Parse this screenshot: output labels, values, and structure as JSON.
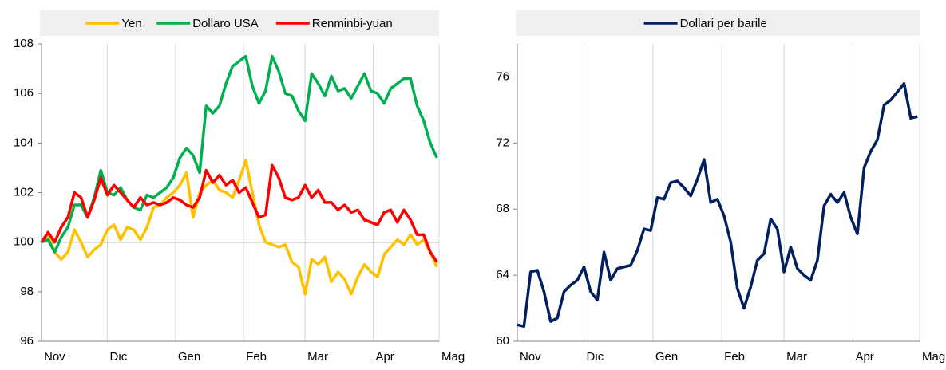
{
  "chart_data": [
    {
      "type": "line",
      "x": [
        0,
        3,
        6,
        9,
        12,
        15,
        18,
        21,
        24,
        27,
        30,
        33,
        36,
        39,
        42,
        45,
        48,
        51,
        54,
        57,
        60,
        63,
        66,
        69,
        72,
        75,
        78,
        81,
        84,
        87,
        90,
        93,
        96,
        99,
        102,
        105,
        108,
        111,
        114,
        117,
        120,
        123,
        126,
        129,
        132,
        135,
        138,
        141,
        144,
        147,
        150,
        153,
        156,
        159,
        162,
        165,
        168,
        171,
        174,
        177,
        180
      ],
      "xlim": [
        0,
        181
      ],
      "xticks": [
        {
          "value": 0,
          "label": "Nov"
        },
        {
          "value": 30,
          "label": "Dic"
        },
        {
          "value": 61,
          "label": "Gen"
        },
        {
          "value": 92,
          "label": "Feb"
        },
        {
          "value": 120,
          "label": "Mar"
        },
        {
          "value": 151,
          "label": "Apr"
        },
        {
          "value": 181,
          "label": "Mag"
        }
      ],
      "ylim": [
        96,
        108
      ],
      "yticks": [
        96,
        98,
        100,
        102,
        104,
        106,
        108
      ],
      "reference_line": 100,
      "grid": "x",
      "legend": "top",
      "series": [
        {
          "name": "Yen",
          "color": "#ffc000",
          "values": [
            100,
            100.3,
            99.6,
            99.3,
            99.6,
            100.5,
            100,
            99.4,
            99.7,
            99.9,
            100.5,
            100.7,
            100.1,
            100.6,
            100.5,
            100.1,
            100.6,
            101.4,
            101.5,
            101.8,
            102,
            102.3,
            102.8,
            101,
            102,
            102.3,
            102.5,
            102.1,
            102,
            101.8,
            102.5,
            103.3,
            102,
            100.7,
            100,
            99.9,
            99.8,
            99.9,
            99.2,
            99,
            97.9,
            99.3,
            99.1,
            99.4,
            98.4,
            98.8,
            98.5,
            97.9,
            98.6,
            99.1,
            98.8,
            98.6,
            99.5,
            99.8,
            100.1,
            99.9,
            100.3,
            99.9,
            100.1,
            99.6,
            99
          ]
        },
        {
          "name": "Dollaro USA",
          "color": "#00b050",
          "values": [
            100,
            100.1,
            99.6,
            100.2,
            100.6,
            101.5,
            101.5,
            101,
            101.8,
            102.9,
            102,
            101.9,
            102.2,
            101.7,
            101.4,
            101.3,
            101.9,
            101.8,
            102,
            102.2,
            102.6,
            103.4,
            103.8,
            103.5,
            102.8,
            105.5,
            105.2,
            105.5,
            106.4,
            107.1,
            107.3,
            107.5,
            106.3,
            105.6,
            106.1,
            107.5,
            106.9,
            106,
            105.9,
            105.3,
            104.9,
            106.8,
            106.4,
            105.9,
            106.7,
            106.1,
            106.2,
            105.8,
            106.3,
            106.8,
            106.1,
            106,
            105.6,
            106.2,
            106.4,
            106.6,
            106.6,
            105.5,
            104.9,
            104,
            103.4
          ]
        },
        {
          "name": "Renminbi-yuan",
          "color": "#ff0000",
          "values": [
            100,
            100.4,
            100,
            100.6,
            101,
            102,
            101.8,
            101,
            101.7,
            102.6,
            101.9,
            102.3,
            102,
            101.7,
            101.4,
            101.8,
            101.5,
            101.6,
            101.5,
            101.6,
            101.8,
            101.7,
            101.5,
            101.4,
            101.8,
            102.9,
            102.4,
            102.7,
            102.3,
            102.5,
            102,
            102.2,
            101.6,
            101,
            101.1,
            103.1,
            102.6,
            101.8,
            101.7,
            101.8,
            102.3,
            101.8,
            102.1,
            101.6,
            101.6,
            101.3,
            101.5,
            101.2,
            101.3,
            100.9,
            100.8,
            100.7,
            101.2,
            101.3,
            100.8,
            101.3,
            100.9,
            100.3,
            100.3,
            99.6,
            99.2
          ]
        }
      ]
    },
    {
      "type": "line",
      "x": [
        0,
        3,
        6,
        9,
        12,
        15,
        18,
        21,
        24,
        27,
        30,
        33,
        36,
        39,
        42,
        45,
        48,
        51,
        54,
        57,
        60,
        63,
        66,
        69,
        72,
        75,
        78,
        81,
        84,
        87,
        90,
        93,
        96,
        99,
        102,
        105,
        108,
        111,
        114,
        117,
        120,
        123,
        126,
        129,
        132,
        135,
        138,
        141,
        144,
        147,
        150,
        153,
        156,
        159,
        162,
        165,
        168,
        171,
        174,
        177,
        180
      ],
      "xlim": [
        0,
        181
      ],
      "xticks": [
        {
          "value": 0,
          "label": "Nov"
        },
        {
          "value": 30,
          "label": "Dic"
        },
        {
          "value": 61,
          "label": "Gen"
        },
        {
          "value": 92,
          "label": "Feb"
        },
        {
          "value": 120,
          "label": "Mar"
        },
        {
          "value": 151,
          "label": "Apr"
        },
        {
          "value": 181,
          "label": "Mag"
        }
      ],
      "ylim": [
        60,
        78
      ],
      "yticks": [
        60,
        64,
        68,
        72,
        76
      ],
      "grid": "x",
      "legend": "top",
      "series": [
        {
          "name": "Dollari per barile",
          "color": "#002060",
          "values": [
            61,
            60.9,
            64.2,
            64.3,
            63,
            61.2,
            61.4,
            63,
            63.4,
            63.7,
            64.5,
            63,
            62.5,
            65.4,
            63.7,
            64.4,
            64.5,
            64.6,
            65.5,
            66.8,
            66.7,
            68.7,
            68.6,
            69.6,
            69.7,
            69.3,
            68.8,
            69.8,
            71,
            68.4,
            68.6,
            67.6,
            66,
            63.2,
            62,
            63.3,
            64.9,
            65.3,
            67.4,
            66.8,
            64.2,
            65.7,
            64.4,
            64,
            63.7,
            64.9,
            68.2,
            68.9,
            68.4,
            69,
            67.5,
            66.5,
            70.5,
            71.5,
            72.2,
            74.3,
            74.6,
            75.1,
            75.6,
            73.5,
            73.6
          ]
        }
      ]
    }
  ]
}
